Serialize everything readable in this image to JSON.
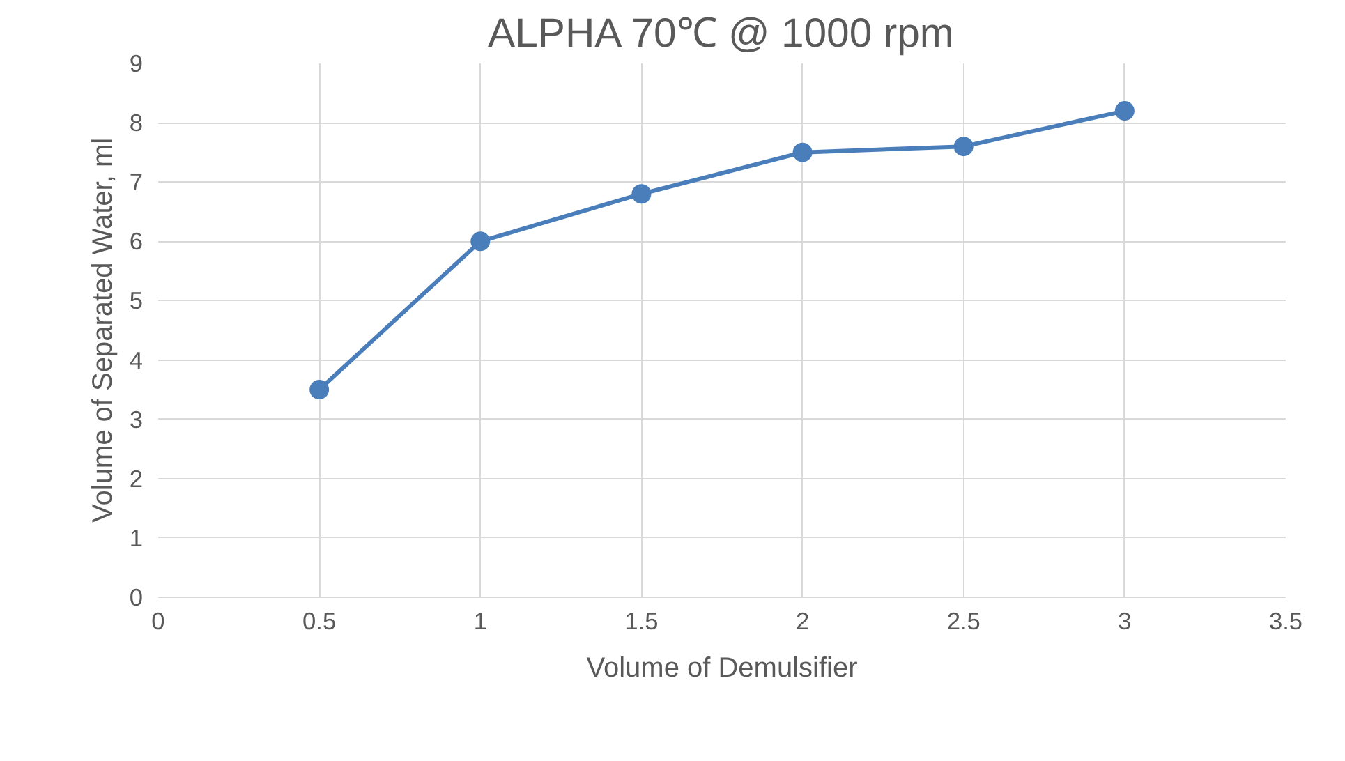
{
  "chart_data": {
    "type": "line",
    "title": "ALPHA 70℃ @ 1000 rpm",
    "xlabel": "Volume of Demulsifier",
    "ylabel": "Volume of Separated Water, ml",
    "x": [
      0.5,
      1,
      1.5,
      2,
      2.5,
      3
    ],
    "series": [
      {
        "color": "#4a7ebb",
        "values": [
          3.5,
          6,
          6.8,
          7.5,
          7.6,
          8.2
        ]
      }
    ],
    "xlim": [
      0,
      3.5
    ],
    "xticks": [
      0,
      0.5,
      1,
      1.5,
      2,
      2.5,
      3,
      3.5
    ],
    "ylim": [
      0,
      9
    ],
    "yticks": [
      0,
      1,
      2,
      3,
      4,
      5,
      6,
      7,
      8,
      9
    ],
    "grid": true,
    "marker": "circle",
    "line_style": "solid"
  }
}
